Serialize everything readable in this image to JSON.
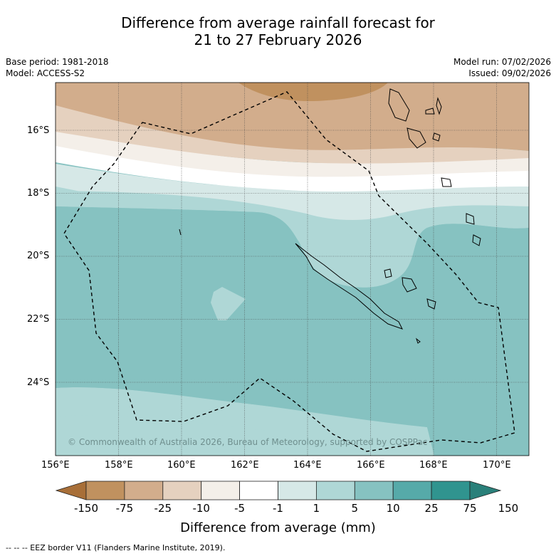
{
  "title": {
    "line1": "Difference from average rainfall forecast for",
    "line2": "21 to 27 February 2026"
  },
  "meta": {
    "base_period": "Base period: 1981-2018",
    "model": "Model: ACCESS-S2",
    "model_run": "Model run: 07/02/2026",
    "issued": "Issued: 09/02/2026"
  },
  "map": {
    "lat_labels": [
      "16°S",
      "18°S",
      "20°S",
      "22°S",
      "24°S"
    ],
    "lon_labels": [
      "156°E",
      "158°E",
      "160°E",
      "162°E",
      "164°E",
      "166°E",
      "168°E",
      "170°E"
    ],
    "copyright": "© Commonwealth of Australia 2026, Bureau of Meteorology, supported by COSPPac"
  },
  "colorbar": {
    "labels": [
      "-150",
      "-75",
      "-25",
      "-10",
      "-5",
      "-1",
      "1",
      "5",
      "10",
      "25",
      "75",
      "150"
    ],
    "colors": [
      "#a86f38",
      "#c0915f",
      "#d2ad8c",
      "#e5d1bf",
      "#f4efe9",
      "#ffffff",
      "#d6e8e7",
      "#afd7d6",
      "#86c2c1",
      "#56aaa9",
      "#30948f"
    ],
    "title": "Difference from average (mm)"
  },
  "footer": {
    "legend": "--  --  -- EEZ border V11 (Flanders Marine Institute, 2019)."
  }
}
